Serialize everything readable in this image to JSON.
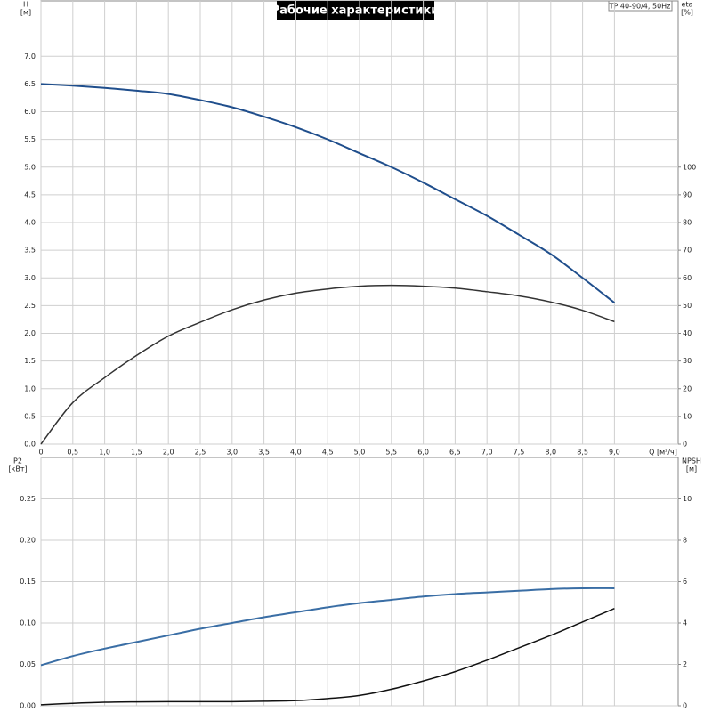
{
  "chart_data": [
    {
      "type": "line",
      "title": "Рабочие характеристики",
      "annotation": "TP 40-90/4, 50Hz",
      "ylabel": "H",
      "ylabel_unit": "[м]",
      "y2label": "eta",
      "y2label_unit": "[%]",
      "xlabel": "Q [м³/ч]",
      "grid": true,
      "xlim": [
        0,
        10
      ],
      "xticks": [
        0,
        {
          "value": 0.5,
          "label": "0,5"
        },
        {
          "value": 1,
          "label": "1,0"
        },
        {
          "value": 1.5,
          "label": "1,5"
        },
        {
          "value": 2,
          "label": "2,0"
        },
        {
          "value": 2.5,
          "label": "2,5"
        },
        {
          "value": 3,
          "label": "3,0"
        },
        {
          "value": 3.5,
          "label": "3,5"
        },
        {
          "value": 4,
          "label": "4,0"
        },
        {
          "value": 4.5,
          "label": "4,5"
        },
        {
          "value": 5,
          "label": "5,0"
        },
        {
          "value": 5.5,
          "label": "5,5"
        },
        {
          "value": 6,
          "label": "6,0"
        },
        {
          "value": 6.5,
          "label": "6,5"
        },
        {
          "value": 7,
          "label": "7,0"
        },
        {
          "value": 7.5,
          "label": "7,5"
        },
        {
          "value": 8,
          "label": "8,0"
        },
        {
          "value": 8.5,
          "label": "8,5"
        },
        {
          "value": 9,
          "label": "9,0"
        }
      ],
      "ylim": [
        0,
        8
      ],
      "yticks": [
        {
          "value": 0,
          "label": "0.0"
        },
        0.5,
        {
          "value": 1,
          "label": "1.0"
        },
        1.5,
        {
          "value": 2,
          "label": "2.0"
        },
        2.5,
        {
          "value": 3,
          "label": "3.0"
        },
        3.5,
        {
          "value": 4,
          "label": "4.0"
        },
        4.5,
        {
          "value": 5,
          "label": "5.0"
        },
        5.5,
        {
          "value": 6,
          "label": "6.0"
        },
        6.5,
        {
          "value": 7,
          "label": "7.0"
        }
      ],
      "y2lim": [
        0,
        160
      ],
      "y2ticks": [
        0,
        10,
        20,
        30,
        40,
        50,
        60,
        70,
        80,
        90,
        100
      ],
      "x": [
        0,
        0.5,
        1,
        1.5,
        2,
        2.5,
        3,
        3.5,
        4,
        4.5,
        5,
        5.5,
        6,
        6.5,
        7,
        7.5,
        8,
        8.5,
        9
      ],
      "series": [
        {
          "color": "#1f4e8c",
          "values": [
            6.5,
            6.47,
            6.43,
            6.38,
            6.32,
            6.21,
            6.08,
            5.91,
            5.72,
            5.5,
            5.25,
            5.0,
            4.72,
            4.42,
            4.12,
            3.78,
            3.43,
            3.0,
            2.55
          ]
        },
        {
          "color": "#333333",
          "axis": "y2",
          "values": [
            0,
            15,
            24,
            32,
            39,
            44,
            48.5,
            52,
            54.5,
            56,
            57,
            57.3,
            57,
            56.3,
            55,
            53.5,
            51.3,
            48.3,
            44.2
          ]
        }
      ]
    },
    {
      "type": "line",
      "ylabel": "P2",
      "ylabel_unit": "[кВт]",
      "y2label": "NPSH",
      "y2label_unit": "[м]",
      "grid": true,
      "xlim": [
        0,
        10
      ],
      "xticks": [
        0,
        0.5,
        1,
        1.5,
        2,
        2.5,
        3,
        3.5,
        4,
        4.5,
        5,
        5.5,
        6,
        6.5,
        7,
        7.5,
        8,
        8.5,
        9
      ],
      "ylim": [
        0,
        0.3
      ],
      "yticks": [
        {
          "value": 0,
          "label": "0.00"
        },
        0.05,
        {
          "value": 0.1,
          "label": "0.10"
        },
        0.15,
        {
          "value": 0.2,
          "label": "0.20"
        },
        0.25
      ],
      "y2lim": [
        0,
        12
      ],
      "y2ticks": [
        0,
        2,
        4,
        6,
        8,
        10
      ],
      "x": [
        0,
        0.5,
        1,
        1.5,
        2,
        2.5,
        3,
        3.5,
        4,
        4.5,
        5,
        5.5,
        6,
        6.5,
        7,
        7.5,
        8,
        8.5,
        9
      ],
      "series": [
        {
          "color": "#3a6ea5",
          "values": [
            0.049,
            0.06,
            0.069,
            0.077,
            0.085,
            0.093,
            0.1,
            0.107,
            0.113,
            0.119,
            0.124,
            0.128,
            0.132,
            0.135,
            0.137,
            0.139,
            0.141,
            0.142,
            0.142
          ]
        },
        {
          "color": "#111111",
          "axis": "y2",
          "values": [
            0.05,
            0.12,
            0.17,
            0.19,
            0.2,
            0.2,
            0.2,
            0.22,
            0.25,
            0.35,
            0.5,
            0.8,
            1.2,
            1.65,
            2.2,
            2.8,
            3.4,
            4.05,
            4.7
          ]
        }
      ]
    }
  ]
}
